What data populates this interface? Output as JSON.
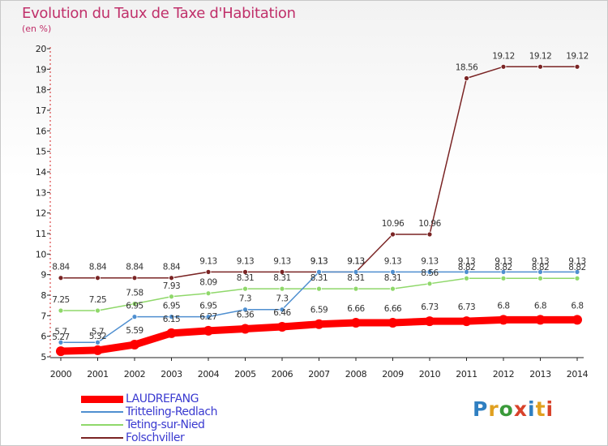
{
  "header": {
    "title": "Evolution du Taux de Taxe d'Habitation",
    "subtitle": "(en %)"
  },
  "logo": {
    "text": "Proxiti",
    "colors": [
      "#2f7fc1",
      "#e0a020",
      "#3a9a3a",
      "#d8422a",
      "#2f7fc1",
      "#e0a020",
      "#d8422a"
    ]
  },
  "chart_data": {
    "type": "line",
    "title": "Evolution du Taux de Taxe d'Habitation",
    "subtitle": "(en %)",
    "x": [
      2000,
      2001,
      2002,
      2003,
      2004,
      2005,
      2006,
      2007,
      2008,
      2009,
      2010,
      2011,
      2012,
      2013,
      2014
    ],
    "ylim": [
      5,
      20
    ],
    "yticks": [
      5,
      6,
      7,
      8,
      9,
      10,
      11,
      12,
      13,
      14,
      15,
      16,
      17,
      18,
      19,
      20
    ],
    "grid": false,
    "legend": "bottom-left",
    "series": [
      {
        "name": "LAUDREFANG",
        "color": "#ff0000",
        "values": [
          5.27,
          5.32,
          5.59,
          6.15,
          6.27,
          6.36,
          6.46,
          6.59,
          6.66,
          6.66,
          6.73,
          6.73,
          6.8,
          6.8,
          6.8
        ],
        "labels": [
          "5.27",
          "5.32",
          "5.59",
          "6.15",
          "6.27",
          "6.36",
          "6.46",
          "6.59",
          "6.66",
          "6.66",
          "6.73",
          "6.73",
          "6.8",
          "6.8",
          "6.8"
        ]
      },
      {
        "name": "Tritteling-Redlach",
        "color": "#4f8fd0",
        "values": [
          5.7,
          5.7,
          6.95,
          6.95,
          6.95,
          7.3,
          7.3,
          9.13,
          9.13,
          9.13,
          9.13,
          9.13,
          9.13,
          9.13,
          9.13
        ],
        "labels": [
          "5.7",
          "5.7",
          "6.95",
          "6.95",
          "6.95",
          "7.3",
          "7.3",
          "9.13",
          "9.13",
          "9.13",
          "9.13",
          "9.13",
          "9.13",
          "9.13",
          "9.13"
        ]
      },
      {
        "name": "Teting-sur-Nied",
        "color": "#8fd86a",
        "values": [
          7.25,
          7.25,
          7.58,
          7.93,
          8.09,
          8.31,
          8.31,
          8.31,
          8.31,
          8.31,
          8.56,
          8.82,
          8.82,
          8.82,
          8.82
        ],
        "labels": [
          "7.25",
          "7.25",
          "7.58",
          "7.93",
          "8.09",
          "8.31",
          "8.31",
          "8.31",
          "8.31",
          "8.31",
          "8.56",
          "8.82",
          "8.82",
          "8.82",
          "8.82"
        ]
      },
      {
        "name": "Folschviller",
        "color": "#7a2424",
        "values": [
          8.84,
          8.84,
          8.84,
          8.84,
          9.13,
          9.13,
          9.13,
          9.13,
          9.13,
          10.96,
          10.96,
          18.56,
          19.12,
          19.12,
          19.12
        ],
        "labels": [
          "8.84",
          "8.84",
          "8.84",
          "8.84",
          "9.13",
          "9.13",
          "9.13",
          "9.13",
          "9.13",
          "10.96",
          "10.96",
          "18.56",
          "19.12",
          "19.12",
          "19.12"
        ]
      }
    ]
  }
}
